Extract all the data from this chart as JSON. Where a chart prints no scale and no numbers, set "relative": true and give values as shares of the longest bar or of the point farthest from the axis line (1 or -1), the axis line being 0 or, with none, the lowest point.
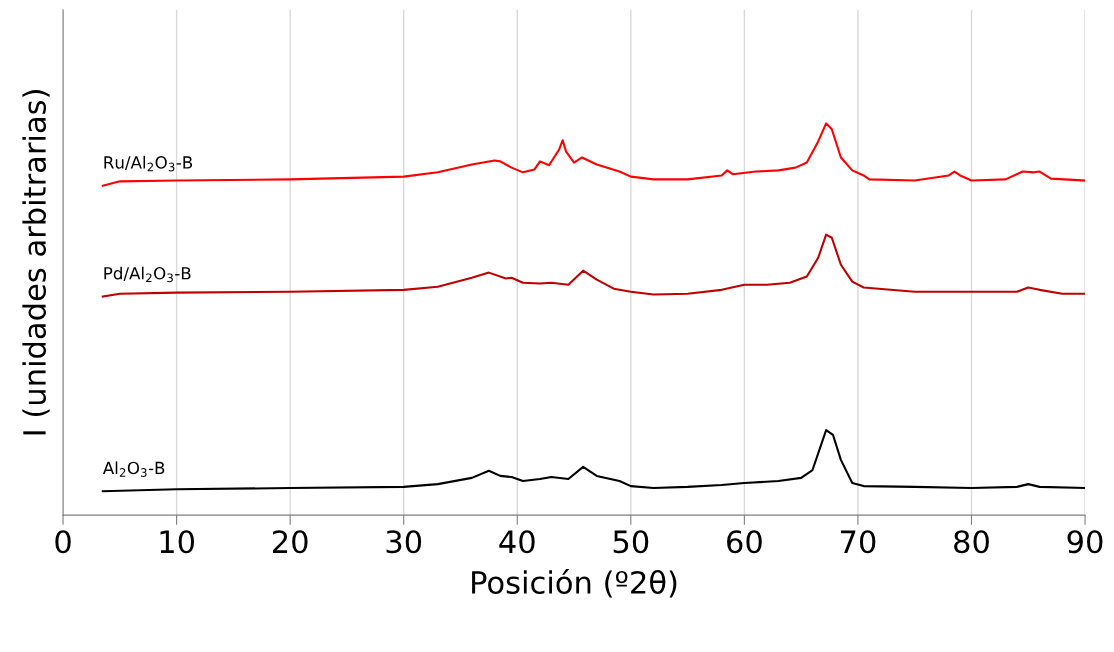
{
  "chart_data": {
    "type": "line",
    "relative": true,
    "xlabel": "Posición (º2θ)",
    "ylabel": "I (unidades arbitrarias)",
    "xlim": [
      0,
      90
    ],
    "xticks": [
      0,
      10,
      20,
      30,
      40,
      50,
      60,
      70,
      80,
      90
    ],
    "grid": "x",
    "legend": false,
    "marker": "none",
    "line_style": "solid",
    "tick_labels": "x",
    "series": [
      {
        "name": "Ru/Al$_{2}$O$_{3}$-B",
        "color": "#ff0000",
        "x": [
          3.5,
          5,
          10,
          20,
          30,
          33,
          36,
          38,
          38.5,
          39.5,
          40.5,
          41.5,
          42,
          42.8,
          43.7,
          44,
          44.3,
          45,
          45.7,
          47,
          49,
          50,
          52,
          55,
          58,
          58.5,
          59,
          61,
          63,
          64.5,
          65.5,
          66.5,
          67.2,
          67.7,
          68.5,
          69.5,
          70.5,
          71,
          75,
          78,
          78.5,
          79,
          80,
          83,
          84.5,
          85.5,
          86,
          87,
          90
        ],
        "values": [
          0.841,
          0.852,
          0.854,
          0.857,
          0.864,
          0.875,
          0.895,
          0.905,
          0.903,
          0.887,
          0.875,
          0.882,
          0.903,
          0.893,
          0.934,
          0.957,
          0.928,
          0.9,
          0.913,
          0.895,
          0.877,
          0.864,
          0.857,
          0.857,
          0.867,
          0.88,
          0.87,
          0.877,
          0.88,
          0.887,
          0.9,
          0.954,
          1.0,
          0.985,
          0.913,
          0.88,
          0.867,
          0.857,
          0.854,
          0.867,
          0.877,
          0.867,
          0.854,
          0.857,
          0.877,
          0.875,
          0.877,
          0.859,
          0.854
        ]
      },
      {
        "name": "Pd/Al$_{2}$O$_{3}$-B",
        "color": "#c00000",
        "x": [
          3.5,
          5,
          10,
          20,
          30,
          33,
          36,
          37.5,
          39,
          39.5,
          40.5,
          42,
          43,
          44.5,
          45.8,
          47,
          48.5,
          50,
          52,
          55,
          58,
          60,
          62,
          64,
          65.5,
          66.5,
          67.2,
          67.7,
          68.5,
          69.5,
          70.5,
          75,
          80,
          84,
          85,
          86,
          88,
          90
        ],
        "values": [
          0.558,
          0.565,
          0.568,
          0.57,
          0.575,
          0.583,
          0.606,
          0.619,
          0.604,
          0.606,
          0.593,
          0.591,
          0.593,
          0.588,
          0.624,
          0.601,
          0.578,
          0.57,
          0.563,
          0.565,
          0.575,
          0.588,
          0.588,
          0.593,
          0.609,
          0.657,
          0.716,
          0.708,
          0.639,
          0.596,
          0.581,
          0.57,
          0.57,
          0.57,
          0.581,
          0.575,
          0.565,
          0.565
        ]
      },
      {
        "name": "Al$_{2}$O$_{3}$-B",
        "color": "#000000",
        "x": [
          3.5,
          10,
          20,
          30,
          33,
          36,
          37.5,
          38.5,
          39.5,
          40.5,
          42,
          43,
          44.5,
          45.8,
          47,
          49,
          50,
          52,
          55,
          58,
          60,
          63,
          65,
          66,
          67.2,
          67.8,
          68.5,
          69.5,
          70.5,
          75,
          80,
          84,
          85,
          86,
          90
        ],
        "values": [
          0.061,
          0.066,
          0.069,
          0.072,
          0.079,
          0.095,
          0.113,
          0.1,
          0.097,
          0.087,
          0.092,
          0.097,
          0.092,
          0.123,
          0.1,
          0.087,
          0.074,
          0.069,
          0.072,
          0.077,
          0.082,
          0.087,
          0.095,
          0.115,
          0.217,
          0.205,
          0.141,
          0.082,
          0.074,
          0.072,
          0.069,
          0.072,
          0.079,
          0.072,
          0.069
        ]
      }
    ]
  }
}
